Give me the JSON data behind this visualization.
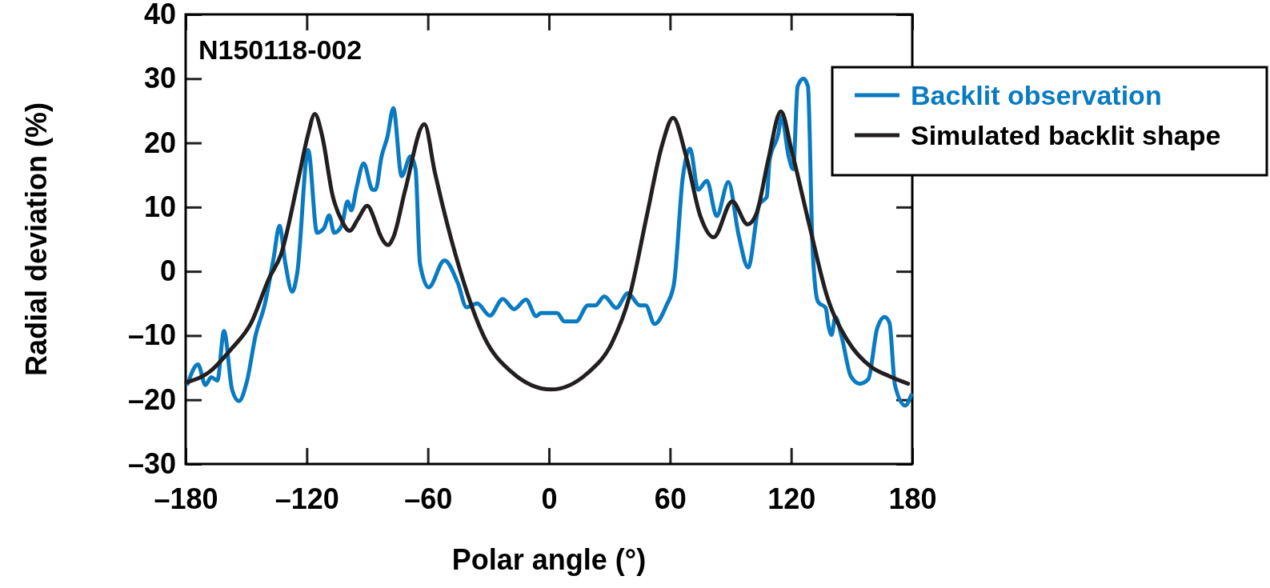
{
  "chart_data": {
    "type": "line",
    "xlabel": "Polar angle (°)",
    "ylabel": "Radial deviation (%)",
    "xlim": [
      -180,
      180
    ],
    "ylim": [
      -30,
      40
    ],
    "xticks": [
      {
        "value": -180,
        "label": "–180"
      },
      {
        "value": -120,
        "label": "–120"
      },
      {
        "value": -60,
        "label": "–60"
      },
      0,
      60,
      120,
      180
    ],
    "yticks": [
      {
        "value": -30,
        "label": "–30"
      },
      {
        "value": -20,
        "label": "–20"
      },
      {
        "value": -10,
        "label": "–10"
      },
      0,
      10,
      20,
      30,
      40
    ],
    "grid": false,
    "legend": "right",
    "line_style": "solid",
    "marker": "none",
    "annotations": [
      "N150118-002"
    ],
    "series": [
      {
        "name": "Backlit observation",
        "color": "#0a7bc1",
        "x": [
          -179,
          -173.9,
          -170.2,
          -167.3,
          -164.3,
          -161,
          -157,
          -153.6,
          -149.7,
          -145.3,
          -140.9,
          -136.5,
          -133.5,
          -130.6,
          -127.2,
          -124.7,
          -119.3,
          -114.9,
          -111.5,
          -108.9,
          -106.4,
          -102.7,
          -99.8,
          -97.9,
          -95.4,
          -91.8,
          -87.4,
          -85.9,
          -83,
          -80,
          -77.1,
          -73,
          -68.6,
          -66.1,
          -63.9,
          -59.6,
          -51.8,
          -45.2,
          -40.8,
          -35.6,
          -29.3,
          -22.9,
          -17.3,
          -11.4,
          -6.3,
          -4.1,
          4,
          7.6,
          13.5,
          19.3,
          23,
          27.4,
          33.3,
          39.1,
          45,
          47.9,
          52.3,
          58.2,
          61.9,
          66.3,
          69.9,
          73.9,
          78.2,
          83.1,
          88.9,
          94,
          98.7,
          104.2,
          107.9,
          109.3,
          113.7,
          115.2,
          118.8,
          121,
          123.2,
          126.1,
          128.3,
          130.5,
          132,
          133.4,
          137.1,
          138.5,
          140,
          141.9,
          145.1,
          149.5,
          153.9,
          158.2,
          162.6,
          166.3,
          168.7,
          171.4,
          176.5,
          179.4
        ],
        "values": [
          -17.5,
          -14.5,
          -17.7,
          -16.5,
          -17,
          -9.3,
          -18.4,
          -20.2,
          -17.2,
          -9.9,
          -5.3,
          1.9,
          7.1,
          1.2,
          -3.2,
          -0.2,
          18.9,
          6,
          6.7,
          8.7,
          6,
          7.1,
          10.9,
          9.5,
          12.9,
          16.8,
          12.7,
          12.7,
          17.8,
          21,
          25.4,
          14.8,
          17.9,
          15.9,
          1.2,
          -2.5,
          1.7,
          -1.8,
          -5.6,
          -5,
          -6.9,
          -4.3,
          -5.9,
          -4.4,
          -7,
          -6.5,
          -6.5,
          -7.8,
          -7.8,
          -5.3,
          -5.3,
          -3.9,
          -5.7,
          -3.4,
          -5.3,
          -5.3,
          -8.2,
          -5.3,
          -2,
          14.6,
          19.1,
          12.7,
          14.1,
          8.6,
          13.9,
          5.6,
          0.6,
          10.4,
          11.6,
          17.3,
          21.5,
          24.2,
          17.8,
          15.9,
          28.8,
          30,
          28.8,
          4.4,
          -2.7,
          -4.8,
          -5.7,
          -8.5,
          -9.9,
          -7.1,
          -10.3,
          -16.3,
          -17.5,
          -16.8,
          -8.9,
          -7.1,
          -8,
          -17.7,
          -20.9,
          -19.3
        ]
      },
      {
        "name": "Simulated backlit shape",
        "color": "#231f20",
        "x": [
          -179.7,
          -168,
          -157.7,
          -147.5,
          -138.7,
          -132.8,
          -124,
          -119.6,
          -116,
          -112.3,
          -107.2,
          -102.7,
          -98.8,
          -94.7,
          -90,
          -85.9,
          -84.1,
          -79.7,
          -77.1,
          -71.2,
          -61.7,
          -56.6,
          -53.2,
          -43.7,
          -32,
          -18.8,
          1,
          19.3,
          31.1,
          39.9,
          48.7,
          56,
          61.5,
          67.7,
          75,
          81.6,
          90.8,
          98.4,
          102.8,
          108.6,
          114.9,
          120.3,
          129,
          137.8,
          148,
          159.7,
          168.4,
          177.9
        ],
        "values": [
          -17.3,
          -15.6,
          -12.2,
          -8,
          -1.1,
          2.6,
          14.6,
          21,
          24.5,
          21,
          11.8,
          7.9,
          6.3,
          8.1,
          10.2,
          7.6,
          6,
          4.1,
          5.3,
          12.7,
          22.9,
          15.5,
          10.9,
          -0.2,
          -10.3,
          -15.6,
          -18.4,
          -15.8,
          -11.2,
          -3.9,
          9,
          19.6,
          23.9,
          18.2,
          8.6,
          5.3,
          10.9,
          7.3,
          9,
          17.3,
          24.9,
          18.7,
          7.2,
          -3.9,
          -10.8,
          -14.9,
          -16.3,
          -17.5
        ]
      }
    ]
  }
}
